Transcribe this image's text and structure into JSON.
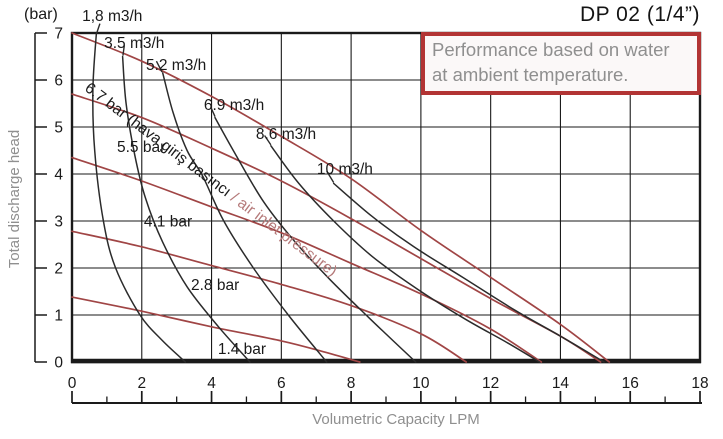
{
  "title": "DP 02 (1/4”)",
  "note": {
    "line1": "Performance based on water",
    "line2": "at ambient temperature."
  },
  "y_axis": {
    "unit": "(bar)",
    "title": "Total discharge head",
    "ticks": [
      7,
      6,
      5,
      4,
      3,
      2,
      1,
      0
    ]
  },
  "x_axis": {
    "title": "Volumetric Capacity LPM",
    "major_ticks": [
      0,
      2,
      4,
      6,
      8,
      10,
      12,
      14,
      16,
      18
    ],
    "minor_tick_step": 1
  },
  "colors": {
    "ink": "#1a1a1a",
    "curve_black": "#2b2b2b",
    "curve_red": "#a04545",
    "note_border": "#b23434",
    "gray_text": "#8f8f8f",
    "accent": "#b57a7a"
  },
  "chart_data": {
    "type": "line",
    "title": "DP 02 (1/4”)",
    "xlabel": "Volumetric Capacity LPM",
    "ylabel": "Total discharge head (bar)",
    "xlim": [
      0,
      18
    ],
    "ylim": [
      0,
      7
    ],
    "grid": {
      "x_step": 2,
      "y_step": 1,
      "on": true
    },
    "series": [
      {
        "id": "p67",
        "name": "6.7 bar (hava giriş basıncı / air inlet pressure)",
        "group": "air-inlet-pressure",
        "color": "red",
        "points": [
          [
            0,
            7.0
          ],
          [
            2,
            6.4
          ],
          [
            4,
            5.65
          ],
          [
            6,
            4.8
          ],
          [
            8,
            3.9
          ],
          [
            10,
            2.8
          ],
          [
            12,
            1.8
          ],
          [
            14,
            0.8
          ],
          [
            15.4,
            0
          ]
        ]
      },
      {
        "id": "p55",
        "name": "5.5 bar",
        "group": "air-inlet-pressure",
        "color": "red",
        "points": [
          [
            0,
            5.7
          ],
          [
            2,
            5.2
          ],
          [
            4,
            4.55
          ],
          [
            6,
            3.85
          ],
          [
            8,
            3.05
          ],
          [
            10,
            2.2
          ],
          [
            12,
            1.35
          ],
          [
            14,
            0.55
          ],
          [
            15.15,
            0
          ]
        ]
      },
      {
        "id": "p41",
        "name": "4.1 bar",
        "group": "air-inlet-pressure",
        "color": "red",
        "points": [
          [
            0,
            4.35
          ],
          [
            2,
            3.85
          ],
          [
            4,
            3.3
          ],
          [
            6,
            2.75
          ],
          [
            8,
            2.1
          ],
          [
            10,
            1.45
          ],
          [
            12,
            0.7
          ],
          [
            13.45,
            0
          ]
        ]
      },
      {
        "id": "p28",
        "name": "2.8 bar",
        "group": "air-inlet-pressure",
        "color": "red",
        "points": [
          [
            0,
            2.78
          ],
          [
            2,
            2.45
          ],
          [
            4,
            2.05
          ],
          [
            6,
            1.65
          ],
          [
            8,
            1.2
          ],
          [
            10,
            0.6
          ],
          [
            11.3,
            0
          ]
        ]
      },
      {
        "id": "p14",
        "name": "1.4 bar",
        "group": "air-inlet-pressure",
        "color": "red",
        "points": [
          [
            0,
            1.38
          ],
          [
            2,
            1.08
          ],
          [
            4,
            0.75
          ],
          [
            6,
            0.45
          ],
          [
            7.2,
            0.22
          ],
          [
            8.25,
            0
          ]
        ]
      },
      {
        "id": "c18",
        "name": "1,8 m3/h",
        "group": "air-consumption",
        "color": "black",
        "points": [
          [
            0.7,
            7.0
          ],
          [
            0.6,
            5.8
          ],
          [
            0.65,
            4.5
          ],
          [
            0.9,
            3.0
          ],
          [
            1.25,
            2.0
          ],
          [
            1.95,
            1.0
          ],
          [
            2.6,
            0.45
          ],
          [
            3.25,
            0
          ]
        ]
      },
      {
        "id": "c35",
        "name": "3.5 m3/h",
        "group": "air-consumption",
        "color": "black",
        "points": [
          [
            1.45,
            6.5
          ],
          [
            1.55,
            5.5
          ],
          [
            1.8,
            4.4
          ],
          [
            2.1,
            3.5
          ],
          [
            2.6,
            2.55
          ],
          [
            3.3,
            1.6
          ],
          [
            4.2,
            0.75
          ],
          [
            5.1,
            0
          ]
        ]
      },
      {
        "id": "c52",
        "name": "5.2 m3/h",
        "group": "air-consumption",
        "color": "black",
        "points": [
          [
            2.6,
            6.15
          ],
          [
            2.9,
            5.3
          ],
          [
            3.3,
            4.5
          ],
          [
            3.75,
            3.95
          ],
          [
            4.35,
            3.0
          ],
          [
            5.2,
            2.0
          ],
          [
            6.2,
            1.0
          ],
          [
            7.3,
            0
          ]
        ]
      },
      {
        "id": "c69",
        "name": "6.9 m3/h",
        "group": "air-consumption",
        "color": "black",
        "points": [
          [
            4.1,
            5.2
          ],
          [
            4.7,
            4.4
          ],
          [
            5.5,
            3.4
          ],
          [
            6.4,
            2.55
          ],
          [
            7.4,
            1.75
          ],
          [
            8.5,
            0.95
          ],
          [
            9.85,
            0
          ]
        ]
      },
      {
        "id": "c86",
        "name": "8.6 m3/h",
        "group": "air-consumption",
        "color": "black",
        "points": [
          [
            5.7,
            4.6
          ],
          [
            6.5,
            3.8
          ],
          [
            7.5,
            3.0
          ],
          [
            8.6,
            2.25
          ],
          [
            9.9,
            1.55
          ],
          [
            11.3,
            0.9
          ],
          [
            12.5,
            0.4
          ],
          [
            13.4,
            0
          ]
        ]
      },
      {
        "id": "c100",
        "name": "10 m3/h",
        "group": "air-consumption",
        "color": "black",
        "points": [
          [
            7.5,
            3.8
          ],
          [
            8.6,
            3.1
          ],
          [
            9.8,
            2.45
          ],
          [
            11.2,
            1.8
          ],
          [
            12.7,
            1.1
          ],
          [
            14,
            0.55
          ],
          [
            15.25,
            0
          ]
        ]
      }
    ],
    "labels": [
      {
        "id": "c18",
        "text": "1,8 m3/h",
        "x": 0.29,
        "y": 7.26
      },
      {
        "id": "c35",
        "text": "3.5 m3/h",
        "x": 0.92,
        "y": 6.68
      },
      {
        "id": "c52",
        "text": "5.2 m3/h",
        "x": 2.12,
        "y": 6.21
      },
      {
        "id": "c69",
        "text": "6.9 m3/h",
        "x": 3.78,
        "y": 5.36
      },
      {
        "id": "c86",
        "text": "8.6 m3/h",
        "x": 5.27,
        "y": 4.74
      },
      {
        "id": "c100",
        "text": "10 m3/h",
        "x": 7.02,
        "y": 4.0
      },
      {
        "id": "p67",
        "rotate": 37,
        "x": 0.34,
        "y": 5.79,
        "parts": [
          {
            "text": "6.7 bar (hava giriş basıncı ",
            "color": "ink"
          },
          {
            "text": "/ air inlet pressure)",
            "color": "accent"
          }
        ]
      },
      {
        "id": "p55",
        "text": "5.5 bar",
        "x": 1.29,
        "y": 4.47
      },
      {
        "id": "p41",
        "text": "4.1 bar",
        "x": 2.06,
        "y": 2.88
      },
      {
        "id": "p28",
        "text": "2.8 bar",
        "x": 3.41,
        "y": 1.53
      },
      {
        "id": "p14",
        "text": "1.4 bar",
        "x": 4.18,
        "y": 0.17
      }
    ],
    "leaders": [
      [
        [
          0.8,
          7.2
        ],
        [
          0.7,
          6.98
        ]
      ],
      [
        [
          1.5,
          6.74
        ],
        [
          1.46,
          6.52
        ]
      ],
      [
        [
          2.42,
          6.4
        ],
        [
          2.58,
          6.17
        ]
      ],
      [
        [
          3.98,
          5.42
        ],
        [
          4.1,
          5.22
        ]
      ],
      [
        [
          5.52,
          4.82
        ],
        [
          5.7,
          4.62
        ]
      ],
      [
        [
          7.3,
          4.06
        ],
        [
          7.5,
          3.82
        ]
      ]
    ]
  }
}
